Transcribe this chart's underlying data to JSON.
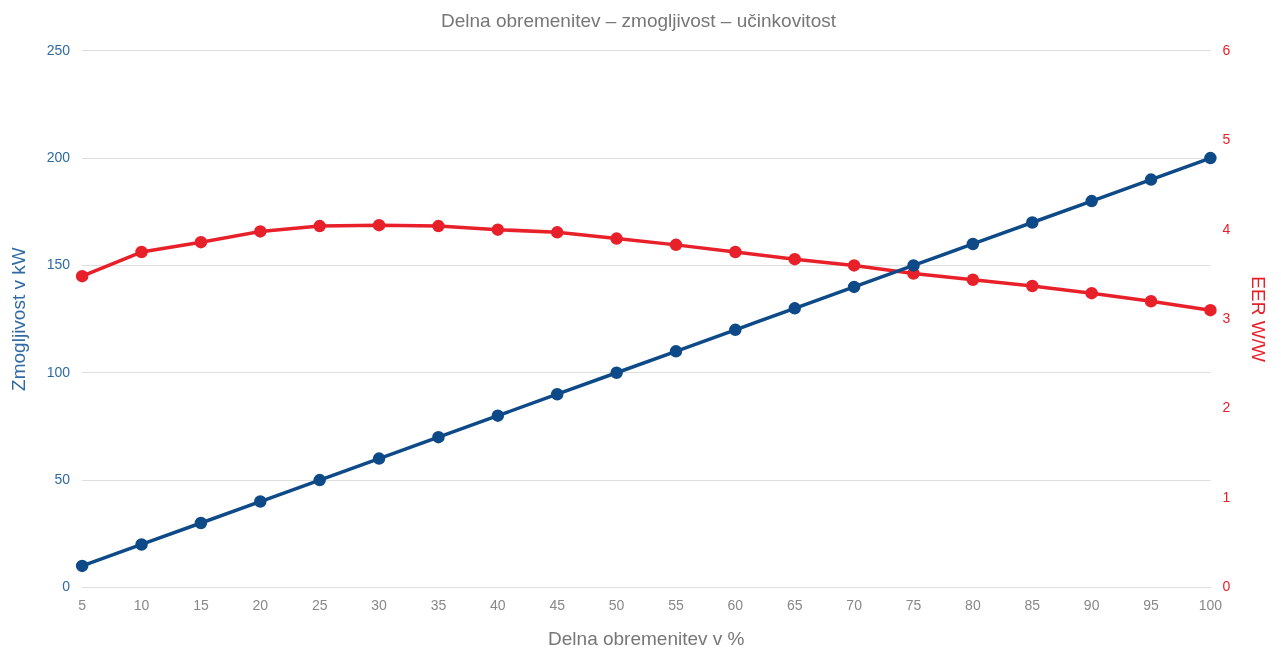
{
  "chart_data": {
    "type": "line",
    "title": "Delna obremenitev – zmogljivost – učinkovitost",
    "xlabel": "Delna obremenitev v %",
    "ylabel": "Zmogljivost v kW",
    "y2label": "EER W/W",
    "categories": [
      "5",
      "10",
      "15",
      "20",
      "25",
      "30",
      "35",
      "40",
      "45",
      "50",
      "55",
      "60",
      "65",
      "70",
      "75",
      "80",
      "85",
      "90",
      "95",
      "100"
    ],
    "series": [
      {
        "color": "#0d4a87",
        "values": [
          10,
          20,
          30,
          40,
          50,
          60,
          70,
          80,
          90,
          100,
          110,
          120,
          130,
          140,
          150,
          160,
          170,
          180,
          190,
          200
        ]
      },
      {
        "color": "#e8202a",
        "axis": "y2",
        "values": [
          3.48,
          3.75,
          3.86,
          3.98,
          4.04,
          4.05,
          4.04,
          4.0,
          3.97,
          3.9,
          3.83,
          3.75,
          3.67,
          3.6,
          3.51,
          3.44,
          3.37,
          3.29,
          3.2,
          3.1
        ]
      }
    ],
    "ylim": [
      0,
      250
    ],
    "yticks": [
      0,
      50,
      100,
      150,
      200,
      250
    ],
    "y2lim": [
      0,
      6
    ],
    "y2ticks": [
      0,
      1,
      2,
      3,
      4,
      5,
      6
    ],
    "grid": "y",
    "legend": false,
    "marker": "circle",
    "line_style": "solid"
  }
}
